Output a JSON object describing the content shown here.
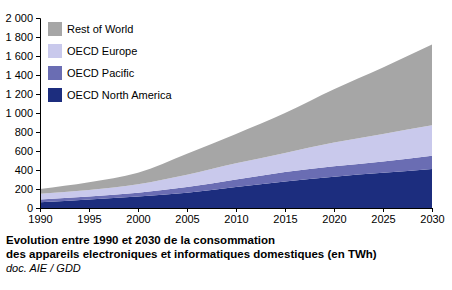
{
  "chart_data": {
    "type": "area",
    "title": [
      "Evolution entre 1990 et 2030 de la consommation",
      "des appareils electroniques et informatiques domestiques (en TWh)"
    ],
    "subtitle": "doc. AIE / GDD",
    "stacked": true,
    "legend": "upper left",
    "grid": false,
    "x": [
      1990,
      1995,
      2000,
      2005,
      2010,
      2015,
      2020,
      2025,
      2030
    ],
    "xlim": [
      1990,
      2030
    ],
    "xticks": [
      1990,
      1995,
      2000,
      2005,
      2010,
      2015,
      2020,
      2025,
      2030
    ],
    "ylim": [
      0,
      2000
    ],
    "yticks": [
      0,
      200,
      400,
      600,
      800,
      {
        "value": 1000,
        "label": "1 000"
      },
      {
        "value": 1200,
        "label": "1 200"
      },
      {
        "value": 1400,
        "label": "1 400"
      },
      {
        "value": 1600,
        "label": "1 600"
      },
      {
        "value": 1800,
        "label": "1 800"
      },
      {
        "value": 2000,
        "label": "2 000"
      }
    ],
    "series": [
      {
        "name": "OECD North America",
        "color": "#1c2d7e",
        "values": [
          60,
          90,
          120,
          160,
          220,
          280,
          330,
          370,
          410
        ]
      },
      {
        "name": "OECD Pacific",
        "color": "#6a6db3",
        "values": [
          30,
          30,
          40,
          60,
          80,
          100,
          110,
          120,
          140
        ]
      },
      {
        "name": "OECD Europe",
        "color": "#c9c9ec",
        "values": [
          60,
          70,
          90,
          130,
          170,
          200,
          250,
          290,
          320
        ]
      },
      {
        "name": "Rest of World",
        "color": "#a6a6a6",
        "values": [
          50,
          80,
          120,
          220,
          310,
          420,
          560,
          700,
          850
        ]
      }
    ]
  }
}
